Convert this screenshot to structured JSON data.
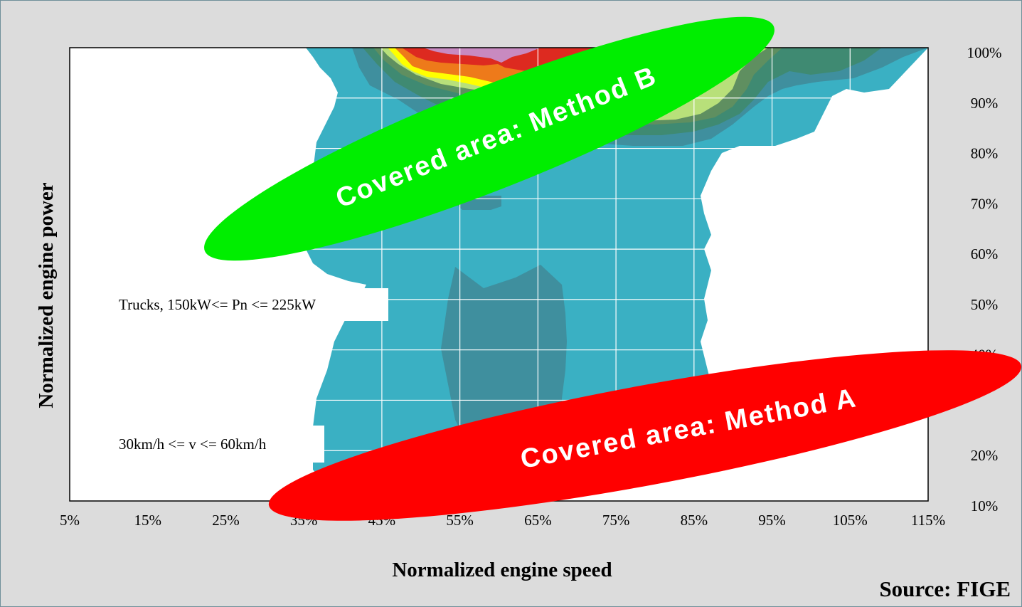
{
  "chart_data": {
    "type": "heatmap",
    "xlabel": "Normalized engine speed",
    "ylabel": "Normalized engine power",
    "x_ticks": [
      "5%",
      "15%",
      "25%",
      "35%",
      "45%",
      "55%",
      "65%",
      "75%",
      "85%",
      "95%",
      "105%",
      "115%"
    ],
    "y_ticks": [
      "100%",
      "90%",
      "80%",
      "70%",
      "60%",
      "50%",
      "40%",
      "20%",
      "10%"
    ],
    "xlim": [
      5,
      115
    ],
    "ylim": [
      10,
      100
    ],
    "grid": true,
    "annotations": [
      "Trucks, 150kW<= Pn <= 225kW",
      "30km/h <= v <= 60km/h"
    ],
    "highlight_areas": [
      {
        "label": "Covered area: Method B",
        "color": "#00ee00"
      },
      {
        "label": "Covered area: Method A",
        "color": "#ff0000"
      }
    ],
    "source": "Source: FIGE",
    "colors": {
      "background": "#dcdcdc",
      "base_contour": "#3ab0c3",
      "dark_contour": "#3f8f9e",
      "green_contour": "#3f8a72",
      "olive_contour": "#5f8f60",
      "light_green_contour": "#b8e07a",
      "yellow_contour": "#ffff00",
      "orange_contour": "#ee7a1a",
      "red_contour": "#dd2a20",
      "violet_contour": "#c88ac0"
    }
  }
}
